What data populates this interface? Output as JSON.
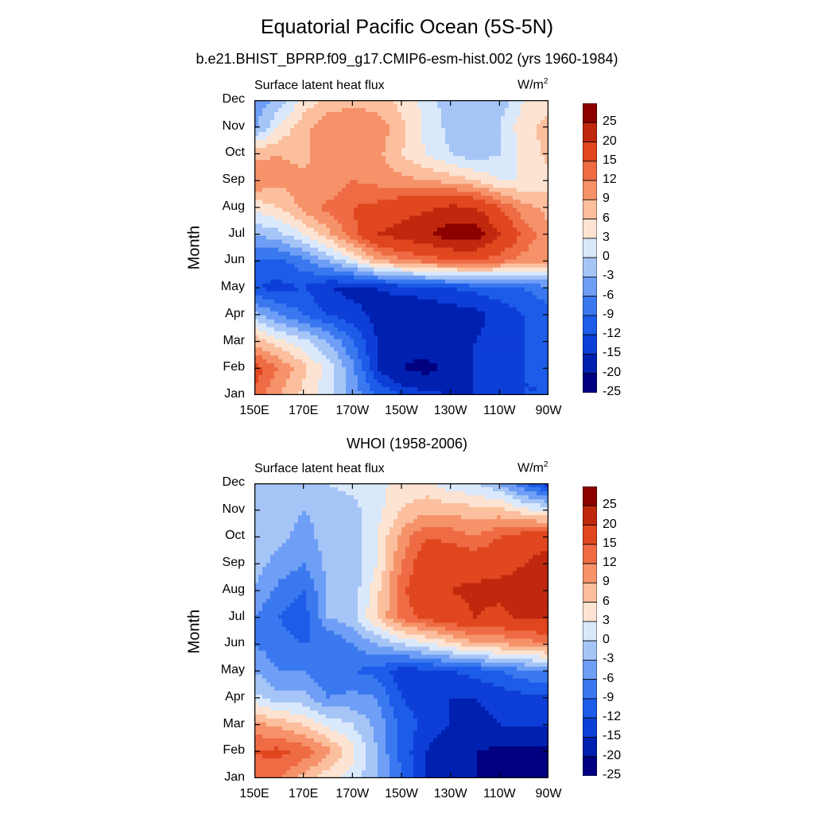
{
  "title": "Equatorial Pacific Ocean (5S-5N)",
  "colors": [
    "#000080",
    "#0020b0",
    "#0d3fd8",
    "#1c5ce8",
    "#3a78f0",
    "#6e9ef5",
    "#a6c5f7",
    "#d9e8fb",
    "#fde4d2",
    "#fbbf9e",
    "#f6926a",
    "#ee6b44",
    "#e0471f",
    "#c0280e",
    "#8c0000"
  ],
  "colorbar_labels": [
    "25",
    "20",
    "15",
    "12",
    "9",
    "6",
    "3",
    "0",
    "-3",
    "-6",
    "-9",
    "-12",
    "-15",
    "-20",
    "-25"
  ],
  "chart_data": [
    {
      "type": "heatmap",
      "title": "b.e21.BHIST_BPRP.f09_g17.CMIP6-esm-hist.002 (yrs 1960-1984)",
      "left_label": "Surface latent heat flux",
      "units": "W/m",
      "units_sup": "2",
      "ylabel": "Month",
      "xlabel": "",
      "x_ticks": [
        "150E",
        "170E",
        "170W",
        "150W",
        "130W",
        "110W",
        "90W"
      ],
      "y_ticks": [
        "Jan",
        "Feb",
        "Mar",
        "Apr",
        "May",
        "Jun",
        "Jul",
        "Aug",
        "Sep",
        "Oct",
        "Nov",
        "Dec"
      ],
      "x": [
        "150E",
        "160E",
        "170E",
        "180",
        "170W",
        "160W",
        "150W",
        "140W",
        "130W",
        "120W",
        "110W",
        "100W",
        "90W"
      ],
      "y": [
        "Jan",
        "Feb",
        "Mar",
        "Apr",
        "May",
        "Jun",
        "Jul",
        "Aug",
        "Sep",
        "Oct",
        "Nov",
        "Dec"
      ],
      "levels": [
        -30,
        -25,
        -20,
        -15,
        -12,
        -9,
        -6,
        -3,
        0,
        3,
        6,
        9,
        12,
        15,
        20,
        25,
        30
      ],
      "z": [
        [
          14,
          9,
          5,
          1,
          -4,
          -9,
          -12,
          -14,
          -15,
          -15,
          -13,
          -12,
          -12
        ],
        [
          17,
          12,
          7,
          2,
          -5,
          -15,
          -20,
          -22,
          -18,
          -15,
          -14,
          -12,
          -12
        ],
        [
          8,
          4,
          1,
          -3,
          -9,
          -15,
          -18,
          -17,
          -16,
          -15,
          -14,
          -12,
          -11
        ],
        [
          -2,
          -6,
          -9,
          -12,
          -14,
          -16,
          -18,
          -18,
          -17,
          -16,
          -14,
          -12,
          -10
        ],
        [
          -12,
          -13,
          -12,
          -15,
          -16,
          -15,
          -14,
          -13,
          -12,
          -11,
          -10,
          -9,
          -7
        ],
        [
          -9,
          -10,
          -7,
          -3,
          2,
          8,
          11,
          13,
          14,
          15,
          13,
          11,
          10
        ],
        [
          -3,
          -1,
          3,
          8,
          14,
          20,
          22,
          24,
          28,
          28,
          20,
          14,
          10
        ],
        [
          4,
          6,
          10,
          13,
          15,
          16,
          18,
          19,
          21,
          20,
          15,
          10,
          8
        ],
        [
          12,
          10,
          10,
          9,
          12,
          11,
          10,
          9,
          8,
          6,
          3,
          3,
          5
        ],
        [
          8,
          9,
          8,
          11,
          12,
          10,
          6,
          3,
          0,
          -2,
          0,
          4,
          7
        ],
        [
          -4,
          3,
          8,
          11,
          12,
          11,
          7,
          2,
          -1,
          -2,
          0,
          5,
          7
        ],
        [
          -5,
          -2,
          4,
          7,
          8,
          7,
          5,
          2,
          -2,
          -3,
          -2,
          3,
          5
        ]
      ]
    },
    {
      "type": "heatmap",
      "title": "WHOI (1958-2006)",
      "left_label": "Surface latent heat flux",
      "units": "W/m",
      "units_sup": "2",
      "ylabel": "Month",
      "xlabel": "",
      "x_ticks": [
        "150E",
        "170E",
        "170W",
        "150W",
        "130W",
        "110W",
        "90W"
      ],
      "y_ticks": [
        "Jan",
        "Feb",
        "Mar",
        "Apr",
        "May",
        "Jun",
        "Jul",
        "Aug",
        "Sep",
        "Oct",
        "Nov",
        "Dec"
      ],
      "x": [
        "150E",
        "160E",
        "170E",
        "180",
        "170W",
        "160W",
        "150W",
        "140W",
        "130W",
        "120W",
        "110W",
        "100W",
        "90W"
      ],
      "y": [
        "Jan",
        "Feb",
        "Mar",
        "Apr",
        "May",
        "Jun",
        "Jul",
        "Aug",
        "Sep",
        "Oct",
        "Nov",
        "Dec"
      ],
      "levels": [
        -30,
        -25,
        -20,
        -15,
        -12,
        -9,
        -6,
        -3,
        0,
        3,
        6,
        9,
        12,
        15,
        20,
        25,
        30
      ],
      "z": [
        [
          14,
          12,
          8,
          4,
          2,
          -3,
          -9,
          -15,
          -18,
          -20,
          -22,
          -24,
          -26
        ],
        [
          15,
          16,
          14,
          10,
          4,
          -3,
          -10,
          -15,
          -18,
          -20,
          -21,
          -22,
          -22
        ],
        [
          10,
          8,
          6,
          2,
          0,
          -4,
          -10,
          -13,
          -15,
          -16,
          -15,
          -14,
          -14
        ],
        [
          1,
          -2,
          -2,
          -6,
          -5,
          -6,
          -12,
          -14,
          -15,
          -15,
          -14,
          -13,
          -13
        ],
        [
          -3,
          -6,
          -6,
          -9,
          -9,
          -10,
          -14,
          -13,
          -12,
          -11,
          -9,
          -7,
          -6
        ],
        [
          -6,
          -8,
          -9,
          -9,
          -6,
          -3,
          0,
          2,
          5,
          8,
          9,
          10,
          12
        ],
        [
          -6,
          -9,
          -11,
          -3,
          -1,
          6,
          13,
          16,
          18,
          20,
          19,
          21,
          20
        ],
        [
          -3,
          -7,
          -9,
          -3,
          -2,
          5,
          14,
          19,
          20,
          21,
          21,
          21,
          21
        ],
        [
          -2,
          -4,
          -6,
          -2,
          -2,
          3,
          12,
          18,
          19,
          18,
          19,
          20,
          22
        ],
        [
          -1,
          -2,
          -4,
          -2,
          -2,
          3,
          10,
          15,
          14,
          12,
          15,
          17,
          18
        ],
        [
          -2,
          -2,
          -3,
          -2,
          -1,
          2,
          6,
          8,
          8,
          7,
          7,
          4,
          2
        ],
        [
          -1,
          -1,
          -1,
          0,
          1,
          2,
          4,
          4,
          1,
          0,
          -3,
          -9,
          -14
        ]
      ]
    }
  ]
}
